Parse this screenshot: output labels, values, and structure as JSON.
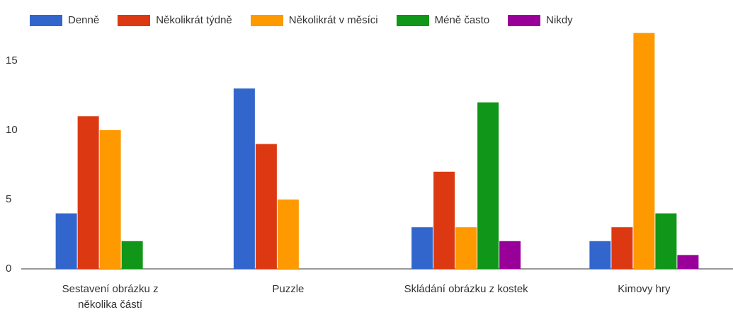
{
  "chart_data": {
    "type": "bar",
    "categories": [
      "Sestavení obrázku z několika částí",
      "Puzzle",
      "Skládání obrázku z kostek",
      "Kimovy hry"
    ],
    "series": [
      {
        "name": "Denně",
        "color": "#3366cc",
        "values": [
          4,
          13,
          3,
          2
        ]
      },
      {
        "name": "Několikrát týdně",
        "color": "#dc3912",
        "values": [
          11,
          9,
          7,
          3
        ]
      },
      {
        "name": "Několikrát v měsíci",
        "color": "#ff9900",
        "values": [
          10,
          5,
          3,
          17
        ]
      },
      {
        "name": "Méně často",
        "color": "#109618",
        "values": [
          2,
          0,
          12,
          4
        ]
      },
      {
        "name": "Nikdy",
        "color": "#990099",
        "values": [
          0,
          0,
          2,
          1
        ]
      }
    ],
    "ylim": [
      0,
      18
    ],
    "yticks": [
      0,
      5,
      10,
      15
    ],
    "legend": "top"
  }
}
